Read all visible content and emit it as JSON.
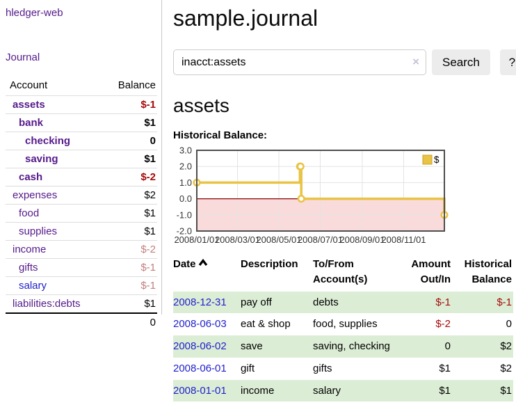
{
  "app": {
    "title": "hledger-web"
  },
  "nav": {
    "journal": "Journal"
  },
  "sidebar": {
    "accounts_table": {
      "col_account": "Account",
      "col_balance": "Balance",
      "rows": [
        {
          "name": "assets",
          "depth": 1,
          "bold": true,
          "balance": "$-1",
          "balance_class": "neg b"
        },
        {
          "name": "bank",
          "depth": 2,
          "bold": true,
          "balance": "$1",
          "balance_class": "b"
        },
        {
          "name": "checking",
          "depth": 3,
          "bold": true,
          "balance": "0",
          "balance_class": "b"
        },
        {
          "name": "saving",
          "depth": 3,
          "bold": true,
          "balance": "$1",
          "balance_class": "b"
        },
        {
          "name": "cash",
          "depth": 2,
          "bold": true,
          "balance": "$-2",
          "balance_class": "neg b"
        },
        {
          "name": "expenses",
          "depth": 1,
          "bold": false,
          "balance": "$2",
          "balance_class": ""
        },
        {
          "name": "food",
          "depth": 2,
          "bold": false,
          "balance": "$1",
          "balance_class": ""
        },
        {
          "name": "supplies",
          "depth": 2,
          "bold": false,
          "balance": "$1",
          "balance_class": ""
        },
        {
          "name": "income",
          "depth": 1,
          "bold": false,
          "balance": "$-2",
          "balance_class": "dimneg"
        },
        {
          "name": "gifts",
          "depth": 2,
          "bold": false,
          "balance": "$-1",
          "balance_class": "dimneg"
        },
        {
          "name": "salary",
          "depth": 2,
          "bold": false,
          "link_blue": true,
          "balance": "$-1",
          "balance_class": "dimneg"
        },
        {
          "name": "liabilities:debts",
          "depth": 1,
          "bold": false,
          "balance": "$1",
          "balance_class": ""
        }
      ],
      "total": "0"
    }
  },
  "main": {
    "title": "sample.journal",
    "search": {
      "value": "inacct:assets",
      "clear": "×",
      "button": "Search",
      "help": "?"
    },
    "account_heading": "assets",
    "chart_title": "Historical Balance:"
  },
  "chart_data": {
    "type": "line",
    "style": "steps",
    "title": "Historical Balance:",
    "x_start": "2008-01-01",
    "x_end": "2008-12-31",
    "series": [
      {
        "name": "$",
        "points": [
          [
            "2008-01-01",
            1
          ],
          [
            "2008-06-01",
            2
          ],
          [
            "2008-06-02",
            2
          ],
          [
            "2008-06-03",
            0
          ],
          [
            "2008-12-31",
            -1
          ]
        ]
      }
    ],
    "ylim": [
      -2,
      3
    ],
    "yticks": [
      3,
      2,
      1,
      0,
      -1,
      -2
    ],
    "ytick_labels": [
      "3.0",
      "2.0",
      "1.0",
      "0.0",
      "-1.0",
      "-2.0"
    ],
    "xticks": [
      {
        "label": "2008/01/01",
        "date": "2008-01-01"
      },
      {
        "label": "2008/03/01",
        "date": "2008-03-01"
      },
      {
        "label": "2008/05/01",
        "date": "2008-05-01"
      },
      {
        "label": "2008/07/01",
        "date": "2008-07-01"
      },
      {
        "label": "2008/09/01",
        "date": "2008-09-01"
      },
      {
        "label": "2008/11/01",
        "date": "2008-11-01"
      }
    ],
    "grid": true,
    "legend": {
      "label": "$",
      "position": "top-right"
    },
    "colors": {
      "line": "#e9c343",
      "marker_fill": "#ffffff",
      "negative_fill": "#fadbdb",
      "zero_line": "#8b0000",
      "frame": "#4d4d4d",
      "gridline": "#e3e3e3",
      "tick_text": "#333333"
    }
  },
  "register": {
    "headers": {
      "date": "Date",
      "description": "Description",
      "accounts": "To/From Account(s)",
      "amount": "Amount Out/In",
      "balance": "Historical Balance"
    },
    "rows": [
      {
        "date": "2008-12-31",
        "description": "pay off",
        "accounts": "debts",
        "amount": "$-1",
        "amount_class": "neg",
        "balance": "$-1",
        "balance_class": "neg"
      },
      {
        "date": "2008-06-03",
        "description": "eat & shop",
        "accounts": "food, supplies",
        "amount": "$-2",
        "amount_class": "neg",
        "balance": "0",
        "balance_class": ""
      },
      {
        "date": "2008-06-02",
        "description": "save",
        "accounts": "saving, checking",
        "amount": "0",
        "amount_class": "",
        "balance": "$2",
        "balance_class": ""
      },
      {
        "date": "2008-06-01",
        "description": "gift",
        "accounts": "gifts",
        "amount": "$1",
        "amount_class": "",
        "balance": "$2",
        "balance_class": ""
      },
      {
        "date": "2008-01-01",
        "description": "income",
        "accounts": "salary",
        "amount": "$1",
        "amount_class": "",
        "balance": "$1",
        "balance_class": ""
      }
    ]
  }
}
